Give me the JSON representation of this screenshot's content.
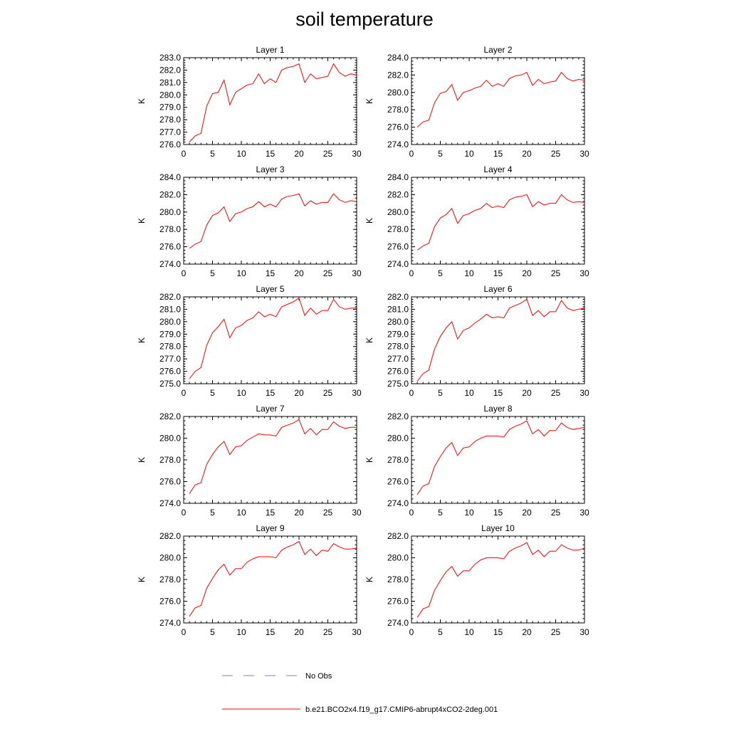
{
  "figure": {
    "title": "soil temperature"
  },
  "legend": [
    {
      "label": "No Obs",
      "color": "#7f7fcc",
      "style": "dashed"
    },
    {
      "label": "b.e21.BCO2x4.f19_g17.CMIP6-abrupt4xCO2-2deg.001",
      "color": "#ff0000",
      "style": "solid"
    }
  ],
  "chart_data": [
    {
      "type": "line",
      "title": "Layer 1",
      "xlabel": "",
      "ylabel": "K",
      "xlim": [
        0,
        30
      ],
      "ylim": [
        276.0,
        283.0
      ],
      "xticks": [
        "0",
        "5",
        "10",
        "15",
        "20",
        "25",
        "30"
      ],
      "yticks": [
        "276.0",
        "277.0",
        "278.0",
        "279.0",
        "280.0",
        "281.0",
        "282.0",
        "283.0"
      ],
      "x": [
        1,
        2,
        3,
        4,
        5,
        6,
        7,
        8,
        9,
        10,
        11,
        12,
        13,
        14,
        15,
        16,
        17,
        18,
        19,
        20,
        21,
        22,
        23,
        24,
        25,
        26,
        27,
        28,
        29,
        30
      ],
      "series": [
        {
          "name": "b.e21.BCO2x4.f19_g17.CMIP6-abrupt4xCO2-2deg.001",
          "color": "#ff0000",
          "values": [
            276.2,
            276.7,
            276.9,
            279.1,
            280.1,
            280.2,
            281.2,
            279.2,
            280.2,
            280.5,
            280.8,
            280.9,
            281.7,
            280.9,
            281.3,
            281.0,
            282.0,
            282.2,
            282.3,
            282.5,
            281.0,
            281.7,
            281.3,
            281.4,
            281.5,
            282.5,
            281.8,
            281.5,
            281.7,
            281.6
          ]
        }
      ]
    },
    {
      "type": "line",
      "title": "Layer 2",
      "xlabel": "",
      "ylabel": "K",
      "xlim": [
        0,
        30
      ],
      "ylim": [
        274.0,
        284.0
      ],
      "xticks": [
        "0",
        "5",
        "10",
        "15",
        "20",
        "25",
        "30"
      ],
      "yticks": [
        "274.0",
        "276.0",
        "278.0",
        "280.0",
        "282.0",
        "284.0"
      ],
      "x": [
        1,
        2,
        3,
        4,
        5,
        6,
        7,
        8,
        9,
        10,
        11,
        12,
        13,
        14,
        15,
        16,
        17,
        18,
        19,
        20,
        21,
        22,
        23,
        24,
        25,
        26,
        27,
        28,
        29,
        30
      ],
      "series": [
        {
          "name": "b.e21.BCO2x4.f19_g17.CMIP6-abrupt4xCO2-2deg.001",
          "color": "#ff0000",
          "values": [
            276.0,
            276.6,
            276.8,
            278.8,
            279.9,
            280.1,
            280.9,
            279.1,
            280.0,
            280.2,
            280.5,
            280.7,
            281.4,
            280.7,
            281.0,
            280.7,
            281.6,
            281.9,
            282.0,
            282.3,
            280.8,
            281.5,
            281.0,
            281.2,
            281.3,
            282.3,
            281.6,
            281.3,
            281.5,
            281.4
          ]
        }
      ]
    },
    {
      "type": "line",
      "title": "Layer 3",
      "xlabel": "",
      "ylabel": "K",
      "xlim": [
        0,
        30
      ],
      "ylim": [
        274.0,
        284.0
      ],
      "xticks": [
        "0",
        "5",
        "10",
        "15",
        "20",
        "25",
        "30"
      ],
      "yticks": [
        "274.0",
        "276.0",
        "278.0",
        "280.0",
        "282.0",
        "284.0"
      ],
      "x": [
        1,
        2,
        3,
        4,
        5,
        6,
        7,
        8,
        9,
        10,
        11,
        12,
        13,
        14,
        15,
        16,
        17,
        18,
        19,
        20,
        21,
        22,
        23,
        24,
        25,
        26,
        27,
        28,
        29,
        30
      ],
      "series": [
        {
          "name": "b.e21.BCO2x4.f19_g17.CMIP6-abrupt4xCO2-2deg.001",
          "color": "#ff0000",
          "values": [
            275.8,
            276.3,
            276.6,
            278.5,
            279.6,
            279.9,
            280.6,
            278.9,
            279.8,
            280.0,
            280.4,
            280.6,
            281.2,
            280.6,
            280.9,
            280.6,
            281.5,
            281.8,
            281.9,
            282.1,
            280.7,
            281.3,
            280.9,
            281.1,
            281.1,
            282.1,
            281.4,
            281.1,
            281.3,
            281.2
          ]
        }
      ]
    },
    {
      "type": "line",
      "title": "Layer 4",
      "xlabel": "",
      "ylabel": "K",
      "xlim": [
        0,
        30
      ],
      "ylim": [
        274.0,
        284.0
      ],
      "xticks": [
        "0",
        "5",
        "10",
        "15",
        "20",
        "25",
        "30"
      ],
      "yticks": [
        "274.0",
        "276.0",
        "278.0",
        "280.0",
        "282.0",
        "284.0"
      ],
      "x": [
        1,
        2,
        3,
        4,
        5,
        6,
        7,
        8,
        9,
        10,
        11,
        12,
        13,
        14,
        15,
        16,
        17,
        18,
        19,
        20,
        21,
        22,
        23,
        24,
        25,
        26,
        27,
        28,
        29,
        30
      ],
      "series": [
        {
          "name": "b.e21.BCO2x4.f19_g17.CMIP6-abrupt4xCO2-2deg.001",
          "color": "#ff0000",
          "values": [
            275.6,
            276.1,
            276.4,
            278.3,
            279.3,
            279.7,
            280.4,
            278.7,
            279.6,
            279.8,
            280.2,
            280.4,
            281.0,
            280.5,
            280.7,
            280.5,
            281.4,
            281.7,
            281.8,
            282.0,
            280.6,
            281.2,
            280.8,
            281.0,
            281.0,
            282.0,
            281.4,
            281.1,
            281.2,
            281.1
          ]
        }
      ]
    },
    {
      "type": "line",
      "title": "Layer 5",
      "xlabel": "",
      "ylabel": "K",
      "xlim": [
        0,
        30
      ],
      "ylim": [
        275.0,
        282.0
      ],
      "xticks": [
        "0",
        "5",
        "10",
        "15",
        "20",
        "25",
        "30"
      ],
      "yticks": [
        "275.0",
        "276.0",
        "277.0",
        "278.0",
        "279.0",
        "280.0",
        "281.0",
        "282.0"
      ],
      "x": [
        1,
        2,
        3,
        4,
        5,
        6,
        7,
        8,
        9,
        10,
        11,
        12,
        13,
        14,
        15,
        16,
        17,
        18,
        19,
        20,
        21,
        22,
        23,
        24,
        25,
        26,
        27,
        28,
        29,
        30
      ],
      "series": [
        {
          "name": "b.e21.BCO2x4.f19_g17.CMIP6-abrupt4xCO2-2deg.001",
          "color": "#ff0000",
          "values": [
            275.4,
            276.0,
            276.3,
            278.1,
            279.1,
            279.6,
            280.2,
            278.7,
            279.5,
            279.7,
            280.1,
            280.3,
            280.8,
            280.4,
            280.6,
            280.4,
            281.2,
            281.4,
            281.6,
            281.9,
            280.5,
            281.1,
            280.6,
            280.9,
            280.9,
            281.8,
            281.2,
            281.0,
            281.1,
            281.1
          ]
        }
      ]
    },
    {
      "type": "line",
      "title": "Layer 6",
      "xlabel": "",
      "ylabel": "K",
      "xlim": [
        0,
        30
      ],
      "ylim": [
        275.0,
        282.0
      ],
      "xticks": [
        "0",
        "5",
        "10",
        "15",
        "20",
        "25",
        "30"
      ],
      "yticks": [
        "275.0",
        "276.0",
        "277.0",
        "278.0",
        "279.0",
        "280.0",
        "281.0",
        "282.0"
      ],
      "x": [
        1,
        2,
        3,
        4,
        5,
        6,
        7,
        8,
        9,
        10,
        11,
        12,
        13,
        14,
        15,
        16,
        17,
        18,
        19,
        20,
        21,
        22,
        23,
        24,
        25,
        26,
        27,
        28,
        29,
        30
      ],
      "series": [
        {
          "name": "b.e21.BCO2x4.f19_g17.CMIP6-abrupt4xCO2-2deg.001",
          "color": "#ff0000",
          "values": [
            275.2,
            275.8,
            276.1,
            277.8,
            278.8,
            279.5,
            280.0,
            278.6,
            279.3,
            279.5,
            279.9,
            280.2,
            280.6,
            280.3,
            280.4,
            280.3,
            281.1,
            281.3,
            281.5,
            281.8,
            280.5,
            280.9,
            280.4,
            280.8,
            280.8,
            281.7,
            281.1,
            280.9,
            281.0,
            281.1
          ]
        }
      ]
    },
    {
      "type": "line",
      "title": "Layer 7",
      "xlabel": "",
      "ylabel": "K",
      "xlim": [
        0,
        30
      ],
      "ylim": [
        274.0,
        282.0
      ],
      "xticks": [
        "0",
        "5",
        "10",
        "15",
        "20",
        "25",
        "30"
      ],
      "yticks": [
        "274.0",
        "276.0",
        "278.0",
        "280.0",
        "282.0"
      ],
      "x": [
        1,
        2,
        3,
        4,
        5,
        6,
        7,
        8,
        9,
        10,
        11,
        12,
        13,
        14,
        15,
        16,
        17,
        18,
        19,
        20,
        21,
        22,
        23,
        24,
        25,
        26,
        27,
        28,
        29,
        30
      ],
      "series": [
        {
          "name": "b.e21.BCO2x4.f19_g17.CMIP6-abrupt4xCO2-2deg.001",
          "color": "#ff0000",
          "values": [
            274.9,
            275.7,
            275.9,
            277.6,
            278.5,
            279.2,
            279.7,
            278.5,
            279.2,
            279.3,
            279.8,
            280.1,
            280.4,
            280.3,
            280.3,
            280.2,
            281.0,
            281.2,
            281.4,
            281.7,
            280.4,
            280.9,
            280.3,
            280.8,
            280.8,
            281.5,
            281.1,
            280.9,
            281.0,
            281.0
          ]
        }
      ]
    },
    {
      "type": "line",
      "title": "Layer 8",
      "xlabel": "",
      "ylabel": "K",
      "xlim": [
        0,
        30
      ],
      "ylim": [
        274.0,
        282.0
      ],
      "xticks": [
        "0",
        "5",
        "10",
        "15",
        "20",
        "25",
        "30"
      ],
      "yticks": [
        "274.0",
        "276.0",
        "278.0",
        "280.0",
        "282.0"
      ],
      "x": [
        1,
        2,
        3,
        4,
        5,
        6,
        7,
        8,
        9,
        10,
        11,
        12,
        13,
        14,
        15,
        16,
        17,
        18,
        19,
        20,
        21,
        22,
        23,
        24,
        25,
        26,
        27,
        28,
        29,
        30
      ],
      "series": [
        {
          "name": "b.e21.BCO2x4.f19_g17.CMIP6-abrupt4xCO2-2deg.001",
          "color": "#ff0000",
          "values": [
            274.8,
            275.6,
            275.8,
            277.4,
            278.3,
            279.1,
            279.6,
            278.4,
            279.1,
            279.2,
            279.7,
            280.0,
            280.2,
            280.2,
            280.2,
            280.1,
            280.8,
            281.1,
            281.3,
            281.6,
            280.4,
            280.8,
            280.2,
            280.7,
            280.7,
            281.4,
            281.0,
            280.8,
            280.9,
            281.0
          ]
        }
      ]
    },
    {
      "type": "line",
      "title": "Layer 9",
      "xlabel": "",
      "ylabel": "K",
      "xlim": [
        0,
        30
      ],
      "ylim": [
        274.0,
        282.0
      ],
      "xticks": [
        "0",
        "5",
        "10",
        "15",
        "20",
        "25",
        "30"
      ],
      "yticks": [
        "274.0",
        "276.0",
        "278.0",
        "280.0",
        "282.0"
      ],
      "x": [
        1,
        2,
        3,
        4,
        5,
        6,
        7,
        8,
        9,
        10,
        11,
        12,
        13,
        14,
        15,
        16,
        17,
        18,
        19,
        20,
        21,
        22,
        23,
        24,
        25,
        26,
        27,
        28,
        29,
        30
      ],
      "series": [
        {
          "name": "b.e21.BCO2x4.f19_g17.CMIP6-abrupt4xCO2-2deg.001",
          "color": "#ff0000",
          "values": [
            274.6,
            275.4,
            275.6,
            277.2,
            278.1,
            278.9,
            279.4,
            278.4,
            279.0,
            279.0,
            279.6,
            279.9,
            280.1,
            280.1,
            280.1,
            280.0,
            280.7,
            281.0,
            281.2,
            281.5,
            280.3,
            280.8,
            280.2,
            280.7,
            280.6,
            281.3,
            281.0,
            280.8,
            280.8,
            280.9
          ]
        }
      ]
    },
    {
      "type": "line",
      "title": "Layer 10",
      "xlabel": "",
      "ylabel": "K",
      "xlim": [
        0,
        30
      ],
      "ylim": [
        274.0,
        282.0
      ],
      "xticks": [
        "0",
        "5",
        "10",
        "15",
        "20",
        "25",
        "30"
      ],
      "yticks": [
        "274.0",
        "276.0",
        "278.0",
        "280.0",
        "282.0"
      ],
      "x": [
        1,
        2,
        3,
        4,
        5,
        6,
        7,
        8,
        9,
        10,
        11,
        12,
        13,
        14,
        15,
        16,
        17,
        18,
        19,
        20,
        21,
        22,
        23,
        24,
        25,
        26,
        27,
        28,
        29,
        30
      ],
      "series": [
        {
          "name": "b.e21.BCO2x4.f19_g17.CMIP6-abrupt4xCO2-2deg.001",
          "color": "#ff0000",
          "values": [
            274.5,
            275.3,
            275.5,
            277.0,
            277.9,
            278.7,
            279.2,
            278.3,
            278.8,
            278.8,
            279.4,
            279.8,
            280.0,
            280.0,
            280.0,
            279.9,
            280.6,
            280.9,
            281.1,
            281.4,
            280.3,
            280.7,
            280.1,
            280.6,
            280.6,
            281.2,
            280.9,
            280.7,
            280.7,
            280.9
          ]
        }
      ]
    }
  ]
}
